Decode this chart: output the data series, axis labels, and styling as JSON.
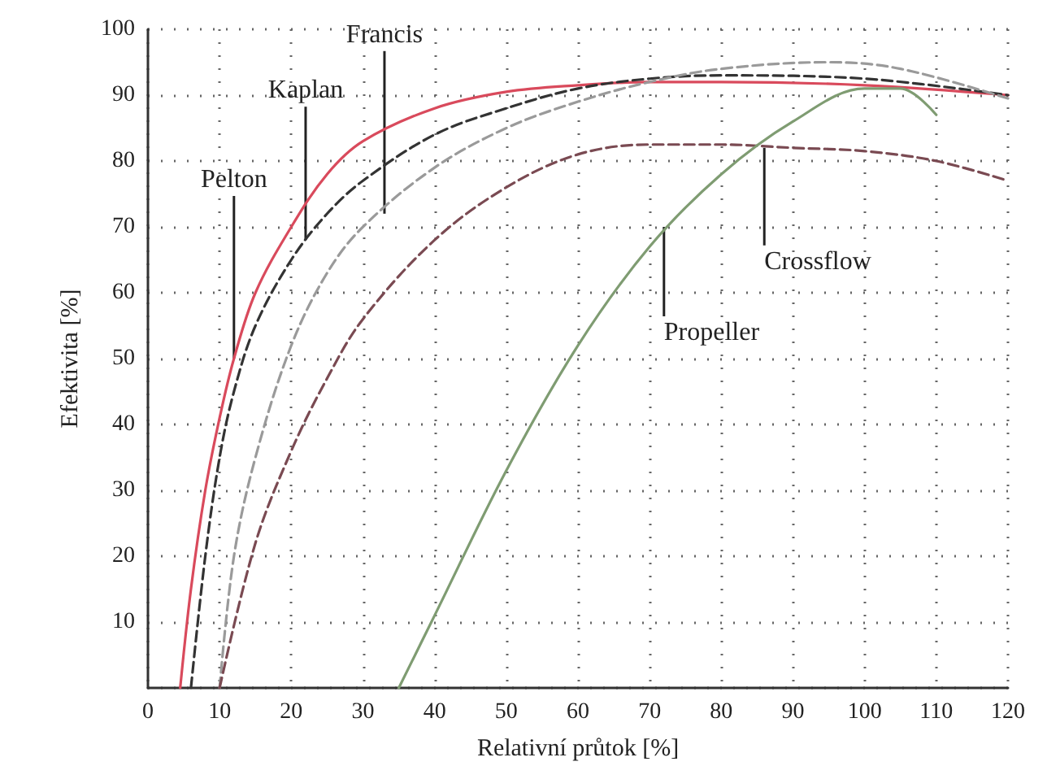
{
  "chart_data": {
    "type": "line",
    "xlabel": "Relativní průtok [%]",
    "ylabel": "Efektivita [%]",
    "xlim": [
      0,
      120
    ],
    "xticks": [
      0,
      10,
      20,
      30,
      40,
      50,
      60,
      70,
      80,
      90,
      100,
      110,
      120
    ],
    "ylim": [
      0,
      100
    ],
    "yticks": [
      {
        "value": 0,
        "label": null
      },
      10,
      20,
      30,
      40,
      50,
      60,
      70,
      80,
      90,
      100
    ],
    "grid": true,
    "marker": "none",
    "series": [
      {
        "color": "#d94a5c",
        "line_style": "solid",
        "x": [
          4.5,
          6,
          8,
          10,
          12,
          15,
          20,
          25,
          30,
          40,
          50,
          60,
          70,
          80,
          100,
          120
        ],
        "values": [
          0,
          15,
          30,
          41,
          50,
          60,
          70,
          78,
          83,
          88,
          90.5,
          91.5,
          92,
          92,
          91.5,
          90
        ]
      },
      {
        "color": "#333333",
        "line_style": "dashed",
        "x": [
          6,
          8,
          10,
          12,
          15,
          20,
          25,
          30,
          40,
          50,
          60,
          70,
          80,
          100,
          120
        ],
        "values": [
          0,
          20,
          35,
          45,
          55,
          65,
          72,
          77,
          84,
          88,
          91,
          92.5,
          93,
          92.5,
          90
        ]
      },
      {
        "color": "#9a9a9a",
        "line_style": "dashed",
        "x": [
          10,
          12,
          15,
          20,
          25,
          30,
          40,
          50,
          60,
          70,
          80,
          95,
          105,
          120
        ],
        "values": [
          0,
          20,
          35,
          52,
          63,
          70,
          79,
          85,
          89,
          92,
          94,
          95,
          94,
          89.5
        ]
      },
      {
        "color": "#7a4a52",
        "line_style": "dashed",
        "x": [
          10,
          15,
          20,
          25,
          30,
          40,
          50,
          60,
          70,
          80,
          90,
          100,
          110,
          120
        ],
        "values": [
          0,
          22,
          36,
          47,
          56,
          68,
          76,
          81,
          82.5,
          82.5,
          82,
          81.5,
          80,
          77
        ]
      },
      {
        "color": "#7f9c72",
        "line_style": "solid",
        "x": [
          35,
          40,
          50,
          60,
          70,
          80,
          90,
          100,
          105,
          110
        ],
        "values": [
          0,
          11,
          33,
          52,
          67,
          78,
          86,
          91,
          91,
          87
        ]
      }
    ],
    "annotations": [
      {
        "text": "Pelton",
        "x": 12,
        "y": 50
      },
      {
        "text": "Kaplan",
        "x": 22,
        "y": 68
      },
      {
        "text": "Francis",
        "x": 33,
        "y": 72
      },
      {
        "text": "Crossflow",
        "x": 86,
        "y": 82
      },
      {
        "text": "Propeller",
        "x": 72,
        "y": 70
      }
    ]
  }
}
